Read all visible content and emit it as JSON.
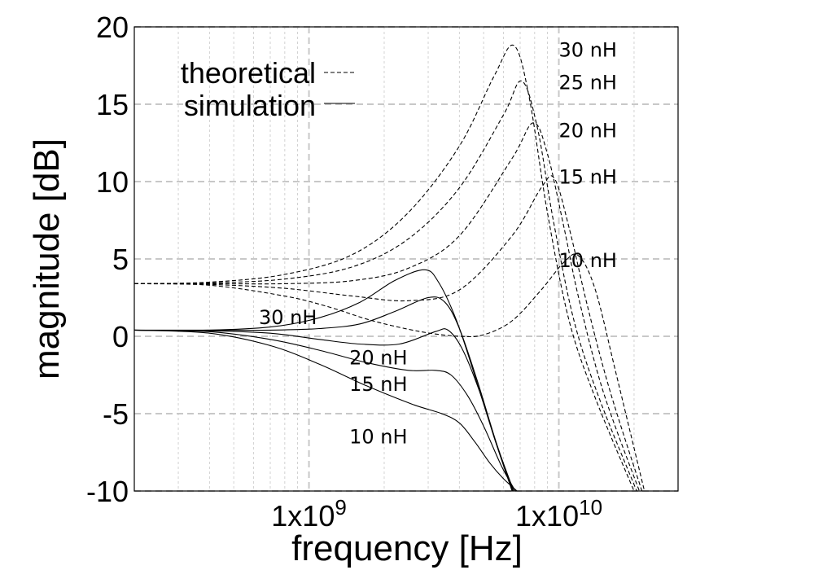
{
  "chart_data": {
    "type": "line",
    "title": "",
    "xlabel": "frequency [Hz]",
    "ylabel": "magnitude [dB]",
    "x_scale": "log",
    "xlim": [
      200000000.0,
      30000000000.0
    ],
    "ylim": [
      -10,
      20
    ],
    "grid": true,
    "y_ticks": [
      20,
      15,
      10,
      5,
      0,
      -5,
      -10
    ],
    "y_tick_labels": [
      "20",
      "15",
      "10",
      "5",
      "0",
      "-5",
      "-10"
    ],
    "x_tick_labels": [
      {
        "value": 1000000000.0,
        "label": "1x10",
        "exp": "9"
      },
      {
        "value": 10000000000.0,
        "label": "1x10",
        "exp": "10"
      }
    ],
    "legend": {
      "position": "top-left",
      "entries": [
        {
          "label": "theoretical",
          "style": "dashed"
        },
        {
          "label": "simulation",
          "style": "solid"
        }
      ]
    },
    "series": [
      {
        "name": "30 nH",
        "kind": "theoretical",
        "x": [
          200000000.0,
          400000000.0,
          800000000.0,
          1500000000.0,
          2500000000.0,
          4000000000.0,
          5500000000.0,
          6600000000.0,
          7600000000.0,
          9000000000.0,
          11000000000.0,
          14000000000.0,
          20000000000.0
        ],
        "y": [
          3.4,
          3.5,
          4.0,
          5.3,
          8.0,
          12.3,
          16.8,
          18.8,
          15.5,
          8.0,
          1.0,
          -4.0,
          -10.0
        ]
      },
      {
        "name": "25 nH",
        "kind": "theoretical",
        "x": [
          200000000.0,
          400000000.0,
          800000000.0,
          1500000000.0,
          2500000000.0,
          4000000000.0,
          6000000000.0,
          7100000000.0,
          8200000000.0,
          9500000000.0,
          11500000000.0,
          14500000000.0,
          20500000000.0
        ],
        "y": [
          3.4,
          3.45,
          3.7,
          4.5,
          6.3,
          9.6,
          14.3,
          16.5,
          13.5,
          7.5,
          1.0,
          -4.0,
          -10.0
        ]
      },
      {
        "name": "20 nH",
        "kind": "theoretical",
        "x": [
          200000000.0,
          400000000.0,
          800000000.0,
          1500000000.0,
          2500000000.0,
          4000000000.0,
          6500000000.0,
          7900000000.0,
          9000000000.0,
          10500000000.0,
          12000000000.0,
          15000000000.0,
          21000000000.0
        ],
        "y": [
          3.4,
          3.4,
          3.4,
          3.6,
          4.4,
          6.5,
          11.5,
          13.8,
          11.8,
          7.0,
          2.5,
          -3.5,
          -10.0
        ]
      },
      {
        "name": "15 nH",
        "kind": "theoretical",
        "x": [
          200000000.0,
          400000000.0,
          800000000.0,
          1500000000.0,
          2500000000.0,
          4000000000.0,
          6500000000.0,
          8500000000.0,
          9600000000.0,
          11000000000.0,
          13000000000.0,
          16000000000.0,
          21500000000.0
        ],
        "y": [
          3.4,
          3.35,
          3.1,
          2.6,
          2.3,
          3.0,
          6.5,
          9.6,
          10.2,
          7.0,
          2.0,
          -3.5,
          -10.0
        ]
      },
      {
        "name": "10 nH",
        "kind": "theoretical",
        "x": [
          200000000.0,
          400000000.0,
          800000000.0,
          1200000000.0,
          1800000000.0,
          2800000000.0,
          4000000000.0,
          5000000000.0,
          6500000000.0,
          8500000000.0,
          10500000000.0,
          12000000000.0,
          14000000000.0,
          17000000000.0,
          22000000000.0
        ],
        "y": [
          3.4,
          3.3,
          2.6,
          1.9,
          1.0,
          0.3,
          0.0,
          0.1,
          1.0,
          3.0,
          4.8,
          5.2,
          3.0,
          -2.5,
          -10.0
        ]
      },
      {
        "name": "30 nH",
        "kind": "simulation",
        "x": [
          200000000.0,
          400000000.0,
          700000000.0,
          1100000000.0,
          1600000000.0,
          2200000000.0,
          2900000000.0,
          3300000000.0,
          3900000000.0,
          4600000000.0,
          5500000000.0,
          6500000000.0
        ],
        "y": [
          0.4,
          0.4,
          0.6,
          1.2,
          2.2,
          3.6,
          4.3,
          3.5,
          1.0,
          -2.5,
          -6.5,
          -10.0
        ]
      },
      {
        "name": "25 nH",
        "kind": "simulation",
        "x": [
          200000000.0,
          400000000.0,
          700000000.0,
          1100000000.0,
          1600000000.0,
          2200000000.0,
          3000000000.0,
          3500000000.0,
          4000000000.0,
          4700000000.0,
          5600000000.0,
          6550000000.0
        ],
        "y": [
          0.4,
          0.4,
          0.4,
          0.5,
          0.8,
          1.6,
          2.5,
          2.2,
          0.5,
          -2.8,
          -6.8,
          -10.0
        ]
      },
      {
        "name": "20 nH",
        "kind": "simulation",
        "x": [
          200000000.0,
          400000000.0,
          700000000.0,
          1100000000.0,
          1600000000.0,
          2300000000.0,
          3200000000.0,
          3600000000.0,
          4100000000.0,
          4800000000.0,
          5700000000.0,
          6600000000.0
        ],
        "y": [
          0.4,
          0.35,
          0.2,
          -0.2,
          -0.5,
          -0.5,
          0.3,
          0.4,
          -0.8,
          -3.5,
          -7.2,
          -10.0
        ]
      },
      {
        "name": "15 nH",
        "kind": "simulation",
        "x": [
          200000000.0,
          400000000.0,
          700000000.0,
          1100000000.0,
          1700000000.0,
          2500000000.0,
          3200000000.0,
          3700000000.0,
          4300000000.0,
          5000000000.0,
          5900000000.0,
          6700000000.0
        ],
        "y": [
          0.4,
          0.3,
          -0.2,
          -0.9,
          -1.7,
          -2.2,
          -2.2,
          -2.5,
          -3.8,
          -5.8,
          -8.4,
          -10.0
        ]
      },
      {
        "name": "10 nH",
        "kind": "simulation",
        "x": [
          200000000.0,
          400000000.0,
          700000000.0,
          1100000000.0,
          1700000000.0,
          2600000000.0,
          3400000000.0,
          4000000000.0,
          4600000000.0,
          5300000000.0,
          6000000000.0,
          6800000000.0
        ],
        "y": [
          0.4,
          0.2,
          -0.6,
          -1.8,
          -3.2,
          -4.4,
          -5.0,
          -5.6,
          -6.8,
          -8.2,
          -9.2,
          -10.0
        ]
      }
    ],
    "annotations": [
      {
        "text": "30 nH",
        "x": 10000000000.0,
        "y": 18.5
      },
      {
        "text": "25 nH",
        "x": 10000000000.0,
        "y": 16.4
      },
      {
        "text": "20 nH",
        "x": 10000000000.0,
        "y": 13.3
      },
      {
        "text": "15 nH",
        "x": 10000000000.0,
        "y": 10.3
      },
      {
        "text": "10 nH",
        "x": 10000000000.0,
        "y": 4.9
      },
      {
        "text": "30 nH",
        "x": 630000000.0,
        "y": 1.2
      },
      {
        "text": "20 nH",
        "x": 1450000000.0,
        "y": -1.4
      },
      {
        "text": "15 nH",
        "x": 1450000000.0,
        "y": -3.1
      },
      {
        "text": "10 nH",
        "x": 1450000000.0,
        "y": -6.5
      }
    ]
  }
}
